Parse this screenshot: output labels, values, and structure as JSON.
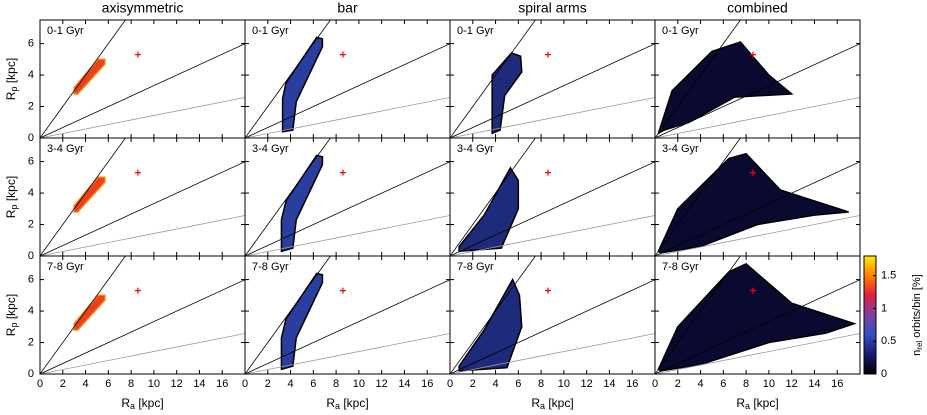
{
  "chart_data": {
    "type": "heatmap-grid",
    "column_titles": [
      "axisymmetric",
      "bar",
      "spiral arms",
      "combined"
    ],
    "row_labels": [
      "0-1 Gyr",
      "3-4 Gyr",
      "7-8 Gyr"
    ],
    "x_label": {
      "symbol": "R",
      "sub": "a",
      "unit": " [kpc]"
    },
    "y_label": {
      "symbol": "R",
      "sub": "p",
      "unit": " [kpc]"
    },
    "xlim": [
      0,
      18
    ],
    "xticks": [
      0,
      2,
      4,
      6,
      8,
      10,
      12,
      14,
      16
    ],
    "ylim": [
      0,
      7.5
    ],
    "yticks": [
      0,
      2,
      4,
      6
    ],
    "reference_lines": {
      "slopes": [
        1,
        0.333,
        0.143
      ],
      "colors": [
        "#000000",
        "#000000",
        "#999999"
      ]
    },
    "marker": {
      "x": 8.6,
      "y": 5.3,
      "color": "#ff0000"
    },
    "colorbar": {
      "label": {
        "symbol": "n",
        "sub": "rel",
        "text": " orbits/bin [%]"
      },
      "lim": [
        0,
        1.8
      ],
      "ticks": [
        0,
        0.5,
        1,
        1.5
      ],
      "colors": [
        "#000000",
        "#1a1a6e",
        "#3050c0",
        "#8040a0",
        "#e02040",
        "#ff8000",
        "#ffee00"
      ]
    }
  }
}
